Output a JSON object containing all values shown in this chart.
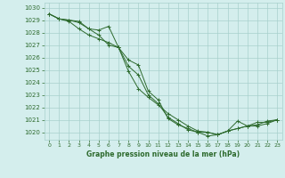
{
  "title": "Graphe pression niveau de la mer (hPa)",
  "bg_color": "#d4eeed",
  "grid_color": "#a8d0cc",
  "line_color": "#2d6a2d",
  "xlim": [
    -0.5,
    23.5
  ],
  "ylim": [
    1019.4,
    1030.4
  ],
  "yticks": [
    1020,
    1021,
    1022,
    1023,
    1024,
    1025,
    1026,
    1027,
    1028,
    1029,
    1030
  ],
  "xticks": [
    0,
    1,
    2,
    3,
    4,
    5,
    6,
    7,
    8,
    9,
    10,
    11,
    12,
    13,
    14,
    15,
    16,
    17,
    18,
    19,
    20,
    21,
    22,
    23
  ],
  "series": [
    [
      1029.5,
      1029.1,
      1029.0,
      1028.9,
      1028.3,
      1028.2,
      1028.5,
      1026.8,
      1025.3,
      1024.6,
      1023.0,
      1022.3,
      1021.2,
      1020.7,
      1020.2,
      1020.0,
      1020.0,
      1019.8,
      1020.1,
      1020.9,
      1020.5,
      1020.8,
      1020.8,
      1021.0
    ],
    [
      1029.5,
      1029.1,
      1029.0,
      1028.8,
      1028.3,
      1027.8,
      1027.0,
      1026.8,
      1025.8,
      1025.4,
      1023.3,
      1022.6,
      1021.1,
      1020.6,
      1020.3,
      1020.0,
      1019.7,
      1019.8,
      1020.1,
      1020.3,
      1020.5,
      1020.5,
      1020.7,
      1021.0
    ],
    [
      1029.5,
      1029.1,
      1028.9,
      1028.3,
      1027.8,
      1027.5,
      1027.2,
      1026.8,
      1024.9,
      1023.5,
      1022.8,
      1022.2,
      1021.5,
      1021.0,
      1020.5,
      1020.1,
      1020.0,
      1019.8,
      1020.1,
      1020.3,
      1020.5,
      1020.6,
      1020.9,
      1021.0
    ]
  ]
}
